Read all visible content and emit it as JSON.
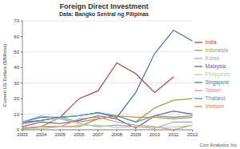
{
  "chart_data": {
    "type": "line",
    "title": "Foreign Direct Investment",
    "subtitle": "Data: Bangko Sentral ng Pilipinas",
    "y_label": "Current US Dollars ($Billions)",
    "annotations": [
      "Corr Analytics Inc"
    ],
    "categories": [
      "2003",
      "2004",
      "2005",
      "2006",
      "2007",
      "2008",
      "2009",
      "2010",
      "2011",
      "2012"
    ],
    "series": [
      {
        "name": "Singapore",
        "color": "#4572a7",
        "values": [
          5,
          8,
          8,
          9,
          11,
          8,
          24,
          49,
          64,
          57
        ]
      },
      {
        "name": "India",
        "color": "#aa4643",
        "values": [
          4,
          6,
          8,
          20,
          25,
          43,
          36,
          24,
          34,
          null
        ]
      },
      {
        "name": "Indonesia",
        "color": "#89a54e",
        "values": [
          1,
          2,
          8,
          5,
          7,
          9,
          5,
          14,
          19,
          20
        ]
      },
      {
        "name": "Malaysia",
        "color": "#71588f",
        "values": [
          2,
          5,
          4,
          6,
          9,
          7,
          1,
          9,
          12,
          10
        ]
      },
      {
        "name": "Thailand",
        "color": "#4198af",
        "values": [
          5,
          6,
          8,
          9,
          11,
          9,
          5,
          9,
          8,
          9
        ]
      },
      {
        "name": "Vietnam",
        "color": "#db843d",
        "values": [
          1,
          2,
          2,
          2,
          7,
          9,
          8,
          8,
          7,
          8
        ]
      },
      {
        "name": "Korea",
        "color": "#93a9cf",
        "values": [
          5,
          9,
          7,
          4,
          2,
          3,
          2,
          1,
          5,
          5
        ]
      },
      {
        "name": "Taiwan",
        "color": "#d19392",
        "values": [
          0.5,
          2,
          2,
          7,
          8,
          5,
          3,
          2,
          0,
          3
        ]
      },
      {
        "name": "Philippines",
        "color": "#b9cd96",
        "values": [
          0.5,
          0.7,
          1.9,
          2.9,
          2.9,
          1.5,
          2,
          1.3,
          1.8,
          2.8
        ]
      }
    ],
    "ylim": [
      0,
      70
    ],
    "yticks": [
      0,
      10,
      20,
      30,
      40,
      50,
      60,
      70
    ],
    "grid": true,
    "legend": "right"
  }
}
